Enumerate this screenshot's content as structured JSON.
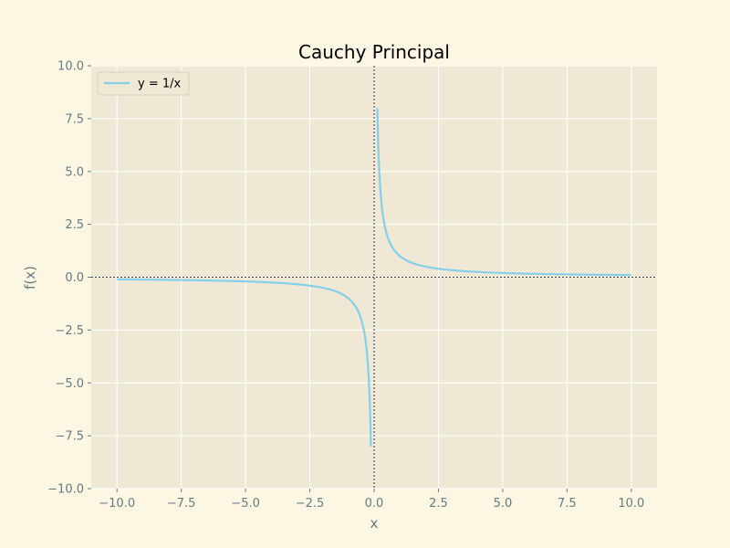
{
  "chart_data": {
    "type": "line",
    "title": "Cauchy Principal",
    "xlabel": "x",
    "ylabel": "f(x)",
    "xlim": [
      -11,
      11
    ],
    "ylim": [
      -10,
      10
    ],
    "x_ticks": [
      -10.0,
      -7.5,
      -5.0,
      -2.5,
      0.0,
      2.5,
      5.0,
      7.5,
      10.0
    ],
    "x_tick_labels": [
      "−10.0",
      "−7.5",
      "−5.0",
      "−2.5",
      "0.0",
      "2.5",
      "5.0",
      "7.5",
      "10.0"
    ],
    "y_ticks": [
      -10.0,
      -7.5,
      -5.0,
      -2.5,
      0.0,
      2.5,
      5.0,
      7.5,
      10.0
    ],
    "y_tick_labels": [
      "−10.0",
      "−7.5",
      "−5.0",
      "−2.5",
      "0.0",
      "2.5",
      "5.0",
      "7.5",
      "10.0"
    ],
    "grid": true,
    "legend_position": "top-left",
    "reference_lines": {
      "x": 0,
      "y": 0,
      "style": "dotted",
      "color": "#000000"
    },
    "series": [
      {
        "name": "y = 1/x",
        "color": "#87ceeb",
        "function": "1/x",
        "segments": [
          {
            "x_start": -10.0,
            "x_end": -0.125
          },
          {
            "x_start": 0.125,
            "x_end": 10.0
          }
        ]
      }
    ],
    "colors": {
      "figure_background": "#fdf6e3",
      "axes_background": "#eee8d5",
      "grid": "#ffffff",
      "text": "#657b83"
    }
  }
}
